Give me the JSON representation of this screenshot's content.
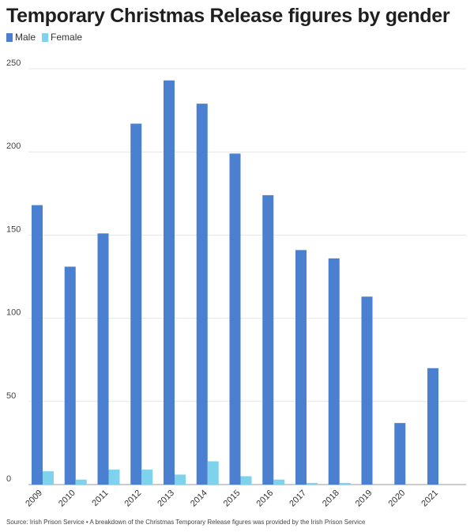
{
  "chart_data": {
    "type": "bar",
    "title": "Temporary Christmas Release figures by gender",
    "categories": [
      "2009",
      "2010",
      "2011",
      "2012",
      "2013",
      "2014",
      "2015",
      "2016",
      "2017",
      "2018",
      "2019",
      "2020",
      "2021"
    ],
    "series": [
      {
        "name": "Male",
        "color": "#4a80cf",
        "values": [
          168,
          131,
          151,
          217,
          243,
          229,
          199,
          174,
          141,
          136,
          113,
          37,
          70
        ]
      },
      {
        "name": "Female",
        "color": "#7fd2ec",
        "values": [
          8,
          3,
          9,
          9,
          6,
          14,
          5,
          3,
          1,
          1,
          0,
          0,
          0
        ]
      }
    ],
    "yticks": [
      0,
      50,
      100,
      150,
      200,
      250
    ],
    "ylim": [
      0,
      265
    ],
    "grid": true,
    "legend_position": "top-left"
  },
  "source_text": "Source: Irish Prison Service • A breakdown of the Christmas Temporary Release figures was provided by the Irish Prison Service"
}
